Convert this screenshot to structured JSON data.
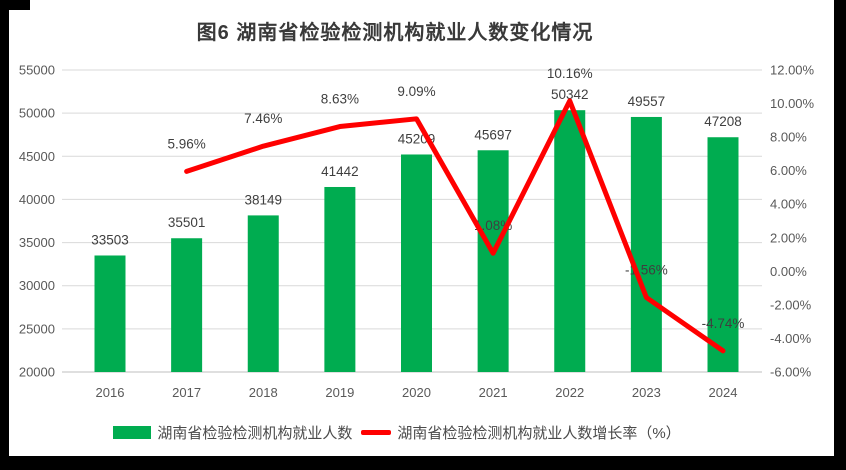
{
  "title": "图6 湖南省检验检测机构就业人数变化情况",
  "chart_data": {
    "type": "bar",
    "subtype": "bar+line combo, dual axis",
    "title": "图6 湖南省检验检测机构就业人数变化情况",
    "categories": [
      "2016",
      "2017",
      "2018",
      "2019",
      "2020",
      "2021",
      "2022",
      "2023",
      "2024"
    ],
    "series": [
      {
        "name": "湖南省检验检测机构就业人数",
        "type": "bar",
        "axis": "left",
        "color": "#00AC50",
        "values": [
          33503,
          35501,
          38149,
          41442,
          45209,
          45697,
          50342,
          49557,
          47208
        ]
      },
      {
        "name": "湖南省检验检测机构就业人数增长率（%）",
        "type": "line",
        "axis": "right",
        "color": "#FF0000",
        "values": [
          null,
          5.96,
          7.46,
          8.63,
          9.09,
          1.08,
          10.16,
          -1.56,
          -4.74
        ],
        "labels": [
          "",
          "5.96%",
          "7.46%",
          "8.63%",
          "9.09%",
          "1.08%",
          "10.16%",
          "-1.56%",
          "-4.74%"
        ]
      }
    ],
    "left_axis": {
      "min": 20000,
      "max": 55000,
      "step": 5000,
      "ticks": [
        "20000",
        "25000",
        "30000",
        "35000",
        "40000",
        "45000",
        "50000",
        "55000"
      ]
    },
    "right_axis": {
      "min": -6,
      "max": 12,
      "step": 2,
      "ticks": [
        "-6.00%",
        "-4.00%",
        "-2.00%",
        "0.00%",
        "2.00%",
        "4.00%",
        "6.00%",
        "8.00%",
        "10.00%",
        "12.00%"
      ]
    },
    "grid": true,
    "legend_position": "bottom"
  },
  "legend": {
    "items": [
      {
        "label": "湖南省检验检测机构就业人数",
        "color": "#00AC50",
        "shape": "rect"
      },
      {
        "label": "湖南省检验检测机构就业人数增长率（%）",
        "color": "#FF0000",
        "shape": "line"
      }
    ]
  },
  "colors": {
    "bar": "#00AC50",
    "line": "#FF0000",
    "grid": "#D9D9D9",
    "axis_line": "#BFBFBF",
    "axis_text": "#595959",
    "data_label": "#3F3F3F",
    "title_text": "#393939",
    "background": "#000000",
    "panel": "#FFFFFF"
  }
}
